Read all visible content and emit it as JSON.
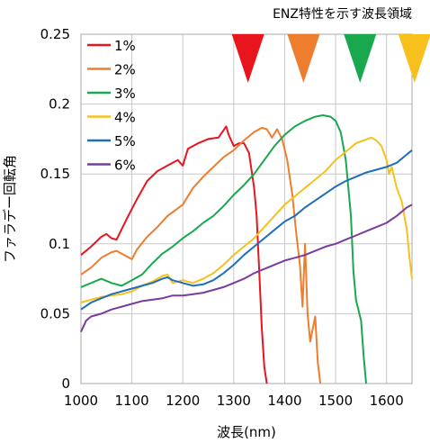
{
  "chart_data": {
    "type": "line",
    "xlabel": "波長(nm)",
    "ylabel": "ファラデー回転角",
    "xlim": [
      1000,
      1650
    ],
    "ylim": [
      0,
      0.25
    ],
    "xticks": [
      "1000",
      "1100",
      "1200",
      "1300",
      "1400",
      "1500",
      "1600"
    ],
    "yticks": [
      "0",
      "0.05",
      "0.1",
      "0.15",
      "0.2",
      "0.25"
    ],
    "grid": true,
    "legend_position": "top-left",
    "annotation": "ENZ特性を示す波長領域",
    "series": [
      {
        "name": "1%",
        "color": "#e8141e",
        "points": [
          [
            1000,
            0.092
          ],
          [
            1020,
            0.098
          ],
          [
            1040,
            0.105
          ],
          [
            1050,
            0.107
          ],
          [
            1060,
            0.104
          ],
          [
            1070,
            0.103
          ],
          [
            1090,
            0.118
          ],
          [
            1110,
            0.132
          ],
          [
            1130,
            0.145
          ],
          [
            1150,
            0.152
          ],
          [
            1170,
            0.156
          ],
          [
            1190,
            0.16
          ],
          [
            1200,
            0.156
          ],
          [
            1210,
            0.168
          ],
          [
            1230,
            0.172
          ],
          [
            1250,
            0.175
          ],
          [
            1270,
            0.176
          ],
          [
            1285,
            0.184
          ],
          [
            1290,
            0.178
          ],
          [
            1300,
            0.17
          ],
          [
            1310,
            0.172
          ],
          [
            1320,
            0.172
          ],
          [
            1330,
            0.165
          ],
          [
            1340,
            0.14
          ],
          [
            1345,
            0.12
          ],
          [
            1350,
            0.08
          ],
          [
            1355,
            0.04
          ],
          [
            1360,
            0.012
          ],
          [
            1365,
            0.0
          ]
        ]
      },
      {
        "name": "2%",
        "color": "#ee7d2e",
        "points": [
          [
            1000,
            0.078
          ],
          [
            1020,
            0.083
          ],
          [
            1040,
            0.09
          ],
          [
            1060,
            0.094
          ],
          [
            1070,
            0.095
          ],
          [
            1080,
            0.093
          ],
          [
            1100,
            0.089
          ],
          [
            1110,
            0.096
          ],
          [
            1130,
            0.105
          ],
          [
            1150,
            0.112
          ],
          [
            1170,
            0.12
          ],
          [
            1200,
            0.128
          ],
          [
            1220,
            0.14
          ],
          [
            1240,
            0.148
          ],
          [
            1260,
            0.155
          ],
          [
            1280,
            0.162
          ],
          [
            1300,
            0.167
          ],
          [
            1320,
            0.174
          ],
          [
            1340,
            0.18
          ],
          [
            1355,
            0.183
          ],
          [
            1365,
            0.182
          ],
          [
            1375,
            0.176
          ],
          [
            1385,
            0.182
          ],
          [
            1395,
            0.175
          ],
          [
            1405,
            0.16
          ],
          [
            1415,
            0.135
          ],
          [
            1422,
            0.11
          ],
          [
            1430,
            0.085
          ],
          [
            1435,
            0.055
          ],
          [
            1440,
            0.1
          ],
          [
            1445,
            0.05
          ],
          [
            1450,
            0.03
          ],
          [
            1460,
            0.048
          ],
          [
            1465,
            0.015
          ],
          [
            1470,
            0.0
          ]
        ]
      },
      {
        "name": "3%",
        "color": "#19a84e",
        "points": [
          [
            1000,
            0.069
          ],
          [
            1020,
            0.072
          ],
          [
            1040,
            0.075
          ],
          [
            1060,
            0.072
          ],
          [
            1080,
            0.07
          ],
          [
            1100,
            0.074
          ],
          [
            1120,
            0.078
          ],
          [
            1140,
            0.086
          ],
          [
            1160,
            0.093
          ],
          [
            1180,
            0.098
          ],
          [
            1200,
            0.104
          ],
          [
            1220,
            0.109
          ],
          [
            1240,
            0.115
          ],
          [
            1260,
            0.12
          ],
          [
            1280,
            0.127
          ],
          [
            1300,
            0.135
          ],
          [
            1320,
            0.142
          ],
          [
            1340,
            0.15
          ],
          [
            1360,
            0.16
          ],
          [
            1380,
            0.17
          ],
          [
            1400,
            0.178
          ],
          [
            1420,
            0.184
          ],
          [
            1440,
            0.188
          ],
          [
            1460,
            0.191
          ],
          [
            1475,
            0.192
          ],
          [
            1490,
            0.191
          ],
          [
            1500,
            0.188
          ],
          [
            1510,
            0.18
          ],
          [
            1520,
            0.16
          ],
          [
            1530,
            0.12
          ],
          [
            1535,
            0.08
          ],
          [
            1540,
            0.06
          ],
          [
            1550,
            0.045
          ],
          [
            1555,
            0.02
          ],
          [
            1560,
            0.0
          ]
        ]
      },
      {
        "name": "4%",
        "color": "#f7c01d",
        "points": [
          [
            1000,
            0.058
          ],
          [
            1020,
            0.06
          ],
          [
            1040,
            0.062
          ],
          [
            1060,
            0.063
          ],
          [
            1080,
            0.064
          ],
          [
            1100,
            0.066
          ],
          [
            1120,
            0.07
          ],
          [
            1140,
            0.073
          ],
          [
            1160,
            0.077
          ],
          [
            1170,
            0.078
          ],
          [
            1180,
            0.072
          ],
          [
            1200,
            0.074
          ],
          [
            1220,
            0.072
          ],
          [
            1240,
            0.075
          ],
          [
            1260,
            0.079
          ],
          [
            1280,
            0.085
          ],
          [
            1300,
            0.092
          ],
          [
            1320,
            0.098
          ],
          [
            1340,
            0.104
          ],
          [
            1360,
            0.112
          ],
          [
            1380,
            0.12
          ],
          [
            1400,
            0.128
          ],
          [
            1420,
            0.134
          ],
          [
            1440,
            0.14
          ],
          [
            1460,
            0.146
          ],
          [
            1480,
            0.152
          ],
          [
            1500,
            0.16
          ],
          [
            1520,
            0.166
          ],
          [
            1540,
            0.172
          ],
          [
            1555,
            0.174
          ],
          [
            1570,
            0.176
          ],
          [
            1580,
            0.174
          ],
          [
            1590,
            0.17
          ],
          [
            1600,
            0.16
          ],
          [
            1605,
            0.15
          ],
          [
            1610,
            0.155
          ],
          [
            1620,
            0.14
          ],
          [
            1630,
            0.13
          ],
          [
            1640,
            0.11
          ],
          [
            1645,
            0.09
          ],
          [
            1650,
            0.075
          ]
        ]
      },
      {
        "name": "5%",
        "color": "#1e6eb8",
        "points": [
          [
            1000,
            0.053
          ],
          [
            1020,
            0.058
          ],
          [
            1040,
            0.061
          ],
          [
            1060,
            0.064
          ],
          [
            1080,
            0.066
          ],
          [
            1100,
            0.068
          ],
          [
            1120,
            0.07
          ],
          [
            1140,
            0.072
          ],
          [
            1160,
            0.075
          ],
          [
            1170,
            0.076
          ],
          [
            1180,
            0.074
          ],
          [
            1200,
            0.072
          ],
          [
            1220,
            0.07
          ],
          [
            1240,
            0.071
          ],
          [
            1260,
            0.074
          ],
          [
            1280,
            0.079
          ],
          [
            1300,
            0.085
          ],
          [
            1320,
            0.092
          ],
          [
            1340,
            0.098
          ],
          [
            1360,
            0.104
          ],
          [
            1380,
            0.11
          ],
          [
            1400,
            0.116
          ],
          [
            1420,
            0.12
          ],
          [
            1440,
            0.126
          ],
          [
            1460,
            0.131
          ],
          [
            1480,
            0.136
          ],
          [
            1500,
            0.141
          ],
          [
            1520,
            0.145
          ],
          [
            1540,
            0.148
          ],
          [
            1560,
            0.151
          ],
          [
            1580,
            0.153
          ],
          [
            1600,
            0.155
          ],
          [
            1620,
            0.158
          ],
          [
            1640,
            0.164
          ],
          [
            1650,
            0.167
          ]
        ]
      },
      {
        "name": "6%",
        "color": "#7a3c9c",
        "points": [
          [
            1000,
            0.037
          ],
          [
            1010,
            0.045
          ],
          [
            1020,
            0.048
          ],
          [
            1040,
            0.05
          ],
          [
            1060,
            0.053
          ],
          [
            1080,
            0.055
          ],
          [
            1100,
            0.057
          ],
          [
            1120,
            0.059
          ],
          [
            1140,
            0.06
          ],
          [
            1160,
            0.061
          ],
          [
            1180,
            0.063
          ],
          [
            1200,
            0.063
          ],
          [
            1220,
            0.064
          ],
          [
            1240,
            0.065
          ],
          [
            1260,
            0.067
          ],
          [
            1280,
            0.069
          ],
          [
            1300,
            0.072
          ],
          [
            1320,
            0.075
          ],
          [
            1340,
            0.079
          ],
          [
            1360,
            0.082
          ],
          [
            1380,
            0.085
          ],
          [
            1400,
            0.088
          ],
          [
            1420,
            0.09
          ],
          [
            1440,
            0.092
          ],
          [
            1460,
            0.095
          ],
          [
            1480,
            0.098
          ],
          [
            1500,
            0.1
          ],
          [
            1520,
            0.103
          ],
          [
            1540,
            0.106
          ],
          [
            1560,
            0.109
          ],
          [
            1580,
            0.112
          ],
          [
            1600,
            0.115
          ],
          [
            1620,
            0.12
          ],
          [
            1640,
            0.126
          ],
          [
            1650,
            0.128
          ]
        ]
      }
    ],
    "markers": [
      {
        "x": 1328,
        "color": "#e8141e"
      },
      {
        "x": 1437,
        "color": "#ee7d2e"
      },
      {
        "x": 1548,
        "color": "#19a84e"
      },
      {
        "x": 1655,
        "color": "#f7c01d"
      }
    ]
  }
}
